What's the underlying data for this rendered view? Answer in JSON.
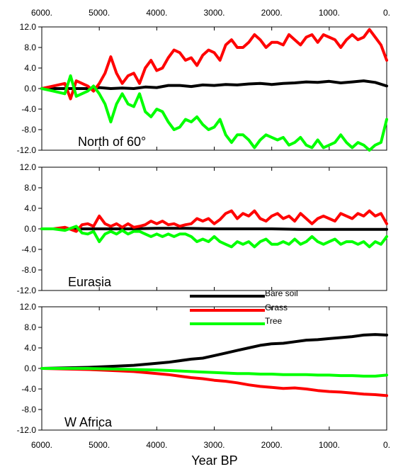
{
  "chart_data": {
    "type": "line",
    "xlabel": "Year BP",
    "x_ticks": [
      "6000.",
      "5000.",
      "4000.",
      "3000.",
      "2000.",
      "1000.",
      "0."
    ],
    "x_tick_values": [
      6000,
      5000,
      4000,
      3000,
      2000,
      1000,
      0
    ],
    "xlim": [
      6000,
      0
    ],
    "y_ticks": [
      "12.0",
      "8.0",
      "4.0",
      "0.0",
      "-4.0",
      "-8.0",
      "-12.0"
    ],
    "y_tick_values": [
      12,
      8,
      4,
      0,
      -4,
      -8,
      -12
    ],
    "ylim": [
      -12,
      12
    ],
    "legend": [
      {
        "name": "Bare soil",
        "color": "#000000"
      },
      {
        "name": "Grass",
        "color": "#ff0000"
      },
      {
        "name": "Tree",
        "color": "#00ff00"
      }
    ],
    "panels": [
      {
        "label": "North of 60°",
        "series": [
          {
            "name": "Bare soil",
            "color": "#000000",
            "x": [
              6000,
              5800,
              5600,
              5400,
              5200,
              5000,
              4800,
              4600,
              4400,
              4200,
              4000,
              3800,
              3600,
              3400,
              3200,
              3000,
              2800,
              2600,
              2400,
              2200,
              2000,
              1800,
              1600,
              1400,
              1200,
              1000,
              800,
              600,
              400,
              200,
              0
            ],
            "values": [
              0,
              0,
              0,
              0,
              0,
              0.2,
              0,
              0.1,
              0,
              0.3,
              0.2,
              0.6,
              0.6,
              0.4,
              0.7,
              0.6,
              0.8,
              0.7,
              0.9,
              1.0,
              0.8,
              1.0,
              1.1,
              1.3,
              1.2,
              1.4,
              1.1,
              1.3,
              1.5,
              1.2,
              0.5
            ]
          },
          {
            "name": "Grass",
            "color": "#ff0000",
            "x": [
              6000,
              5800,
              5600,
              5500,
              5400,
              5200,
              5100,
              5000,
              4900,
              4800,
              4700,
              4600,
              4500,
              4400,
              4300,
              4200,
              4100,
              4000,
              3900,
              3800,
              3700,
              3600,
              3500,
              3400,
              3300,
              3200,
              3100,
              3000,
              2900,
              2800,
              2700,
              2600,
              2500,
              2400,
              2300,
              2200,
              2100,
              2000,
              1900,
              1800,
              1700,
              1600,
              1500,
              1400,
              1300,
              1200,
              1100,
              1000,
              900,
              800,
              700,
              600,
              500,
              400,
              300,
              200,
              100,
              0
            ],
            "values": [
              0,
              0.5,
              1.0,
              -2.0,
              1.5,
              0.5,
              -0.5,
              1.0,
              3.0,
              6.2,
              3.0,
              1.0,
              2.5,
              3.0,
              1.0,
              4.0,
              5.5,
              3.5,
              4.0,
              6.0,
              7.5,
              7.0,
              5.5,
              6.0,
              4.5,
              6.5,
              7.5,
              7.0,
              5.5,
              8.5,
              9.5,
              8.0,
              8.0,
              9.0,
              10.5,
              9.5,
              8.0,
              9.0,
              9.0,
              8.5,
              10.5,
              9.5,
              8.5,
              10.0,
              10.5,
              9.0,
              10.5,
              10.0,
              9.5,
              8.0,
              9.5,
              10.5,
              9.5,
              10.0,
              11.5,
              10.0,
              8.5,
              5.5
            ]
          },
          {
            "name": "Tree",
            "color": "#00ff00",
            "x": [
              6000,
              5800,
              5600,
              5500,
              5400,
              5200,
              5100,
              5000,
              4900,
              4800,
              4700,
              4600,
              4500,
              4400,
              4300,
              4200,
              4100,
              4000,
              3900,
              3800,
              3700,
              3600,
              3500,
              3400,
              3300,
              3200,
              3100,
              3000,
              2900,
              2800,
              2700,
              2600,
              2500,
              2400,
              2300,
              2200,
              2100,
              2000,
              1900,
              1800,
              1700,
              1600,
              1500,
              1400,
              1300,
              1200,
              1100,
              1000,
              900,
              800,
              700,
              600,
              500,
              400,
              300,
              200,
              100,
              0
            ],
            "values": [
              0,
              -0.5,
              -1.0,
              2.5,
              -1.5,
              -0.5,
              0.5,
              -1.0,
              -3.0,
              -6.5,
              -3.0,
              -1.0,
              -3.0,
              -3.5,
              -1.0,
              -4.5,
              -5.5,
              -4.0,
              -4.5,
              -6.5,
              -8.0,
              -7.5,
              -6.0,
              -6.5,
              -5.5,
              -7.0,
              -8.0,
              -7.5,
              -6.0,
              -9.0,
              -10.5,
              -9.0,
              -9.0,
              -10.0,
              -11.5,
              -10.0,
              -9.0,
              -9.5,
              -10.0,
              -9.5,
              -11.0,
              -10.5,
              -9.5,
              -11.0,
              -11.5,
              -10.0,
              -11.5,
              -11.0,
              -10.5,
              -9.0,
              -10.5,
              -11.5,
              -10.5,
              -11.0,
              -12.0,
              -11.0,
              -10.5,
              -6.0
            ]
          }
        ]
      },
      {
        "label": "Eurasia",
        "series": [
          {
            "name": "Bare soil",
            "color": "#000000",
            "x": [
              6000,
              5500,
              5000,
              4500,
              4000,
              3500,
              3000,
              2500,
              2000,
              1500,
              1000,
              500,
              0
            ],
            "values": [
              0,
              0,
              0,
              0,
              0.1,
              0.1,
              0,
              0,
              0,
              -0.1,
              -0.1,
              -0.1,
              -0.1
            ]
          },
          {
            "name": "Grass",
            "color": "#ff0000",
            "x": [
              6000,
              5800,
              5600,
              5400,
              5300,
              5200,
              5100,
              5000,
              4900,
              4800,
              4700,
              4600,
              4500,
              4400,
              4300,
              4200,
              4100,
              4000,
              3900,
              3800,
              3700,
              3600,
              3500,
              3400,
              3300,
              3200,
              3100,
              3000,
              2900,
              2800,
              2700,
              2600,
              2500,
              2400,
              2300,
              2200,
              2100,
              2000,
              1900,
              1800,
              1700,
              1600,
              1500,
              1400,
              1300,
              1200,
              1100,
              1000,
              900,
              800,
              700,
              600,
              500,
              400,
              300,
              200,
              100,
              0
            ],
            "values": [
              0,
              0,
              0.3,
              -0.5,
              0.8,
              1.0,
              0.5,
              2.5,
              1.0,
              0.5,
              1.0,
              0.3,
              1.0,
              0.3,
              0.5,
              0.8,
              1.5,
              1.0,
              1.5,
              0.8,
              1.0,
              0.5,
              0.8,
              1.0,
              2.0,
              1.5,
              2.0,
              1.0,
              1.8,
              3.0,
              3.5,
              2.0,
              3.0,
              2.5,
              3.5,
              2.0,
              1.5,
              2.5,
              3.0,
              2.0,
              2.5,
              1.5,
              3.0,
              2.0,
              1.0,
              2.0,
              2.5,
              2.0,
              1.5,
              3.0,
              2.5,
              2.0,
              3.0,
              2.5,
              3.5,
              2.5,
              3.0,
              1.0
            ]
          },
          {
            "name": "Tree",
            "color": "#00ff00",
            "x": [
              6000,
              5800,
              5600,
              5400,
              5300,
              5200,
              5100,
              5000,
              4900,
              4800,
              4700,
              4600,
              4500,
              4400,
              4300,
              4200,
              4100,
              4000,
              3900,
              3800,
              3700,
              3600,
              3500,
              3400,
              3300,
              3200,
              3100,
              3000,
              2900,
              2800,
              2700,
              2600,
              2500,
              2400,
              2300,
              2200,
              2100,
              2000,
              1900,
              1800,
              1700,
              1600,
              1500,
              1400,
              1300,
              1200,
              1100,
              1000,
              900,
              800,
              700,
              600,
              500,
              400,
              300,
              200,
              100,
              0
            ],
            "values": [
              0,
              0,
              -0.3,
              0.5,
              -0.8,
              -1.0,
              -0.5,
              -2.5,
              -1.0,
              -0.5,
              -1.0,
              -0.3,
              -1.0,
              -0.5,
              -0.5,
              -1.0,
              -1.5,
              -1.0,
              -1.5,
              -1.0,
              -1.5,
              -1.0,
              -1.0,
              -1.5,
              -2.5,
              -2.0,
              -2.5,
              -1.5,
              -2.5,
              -3.0,
              -3.5,
              -2.5,
              -3.0,
              -2.5,
              -3.5,
              -2.5,
              -2.0,
              -3.0,
              -3.0,
              -2.5,
              -3.0,
              -2.0,
              -3.0,
              -2.5,
              -1.5,
              -2.5,
              -3.0,
              -2.5,
              -2.0,
              -3.0,
              -2.5,
              -2.5,
              -3.0,
              -2.5,
              -3.5,
              -2.5,
              -3.0,
              -1.5
            ]
          }
        ]
      },
      {
        "label": "W Africa",
        "series": [
          {
            "name": "Bare soil",
            "color": "#000000",
            "x": [
              6000,
              5600,
              5200,
              4800,
              4400,
              4000,
              3800,
              3600,
              3400,
              3200,
              3000,
              2800,
              2600,
              2400,
              2200,
              2000,
              1800,
              1600,
              1400,
              1200,
              1000,
              800,
              600,
              400,
              200,
              0
            ],
            "values": [
              0,
              0.1,
              0.2,
              0.4,
              0.6,
              1.0,
              1.2,
              1.5,
              1.8,
              2.0,
              2.5,
              3.0,
              3.5,
              4.0,
              4.5,
              4.8,
              4.9,
              5.2,
              5.5,
              5.6,
              5.8,
              6.0,
              6.2,
              6.5,
              6.6,
              6.5
            ]
          },
          {
            "name": "Grass",
            "color": "#ff0000",
            "x": [
              6000,
              5600,
              5200,
              4800,
              4400,
              4000,
              3800,
              3600,
              3400,
              3200,
              3000,
              2800,
              2600,
              2400,
              2200,
              2000,
              1800,
              1600,
              1400,
              1200,
              1000,
              800,
              600,
              400,
              200,
              0
            ],
            "values": [
              0,
              -0.1,
              -0.2,
              -0.4,
              -0.6,
              -1.0,
              -1.2,
              -1.5,
              -1.8,
              -2.0,
              -2.3,
              -2.5,
              -2.8,
              -3.2,
              -3.5,
              -3.7,
              -3.9,
              -3.8,
              -4.0,
              -4.3,
              -4.5,
              -4.6,
              -4.8,
              -5.0,
              -5.1,
              -5.3
            ]
          },
          {
            "name": "Tree",
            "color": "#00ff00",
            "x": [
              6000,
              5600,
              5200,
              4800,
              4400,
              4000,
              3800,
              3600,
              3400,
              3200,
              3000,
              2800,
              2600,
              2400,
              2200,
              2000,
              1800,
              1600,
              1400,
              1200,
              1000,
              800,
              600,
              400,
              200,
              0
            ],
            "values": [
              0,
              0,
              0,
              -0.1,
              -0.2,
              -0.3,
              -0.4,
              -0.5,
              -0.6,
              -0.7,
              -0.8,
              -0.9,
              -1.0,
              -1.0,
              -1.1,
              -1.1,
              -1.2,
              -1.2,
              -1.2,
              -1.3,
              -1.3,
              -1.4,
              -1.4,
              -1.5,
              -1.5,
              -1.3
            ]
          }
        ]
      }
    ]
  }
}
